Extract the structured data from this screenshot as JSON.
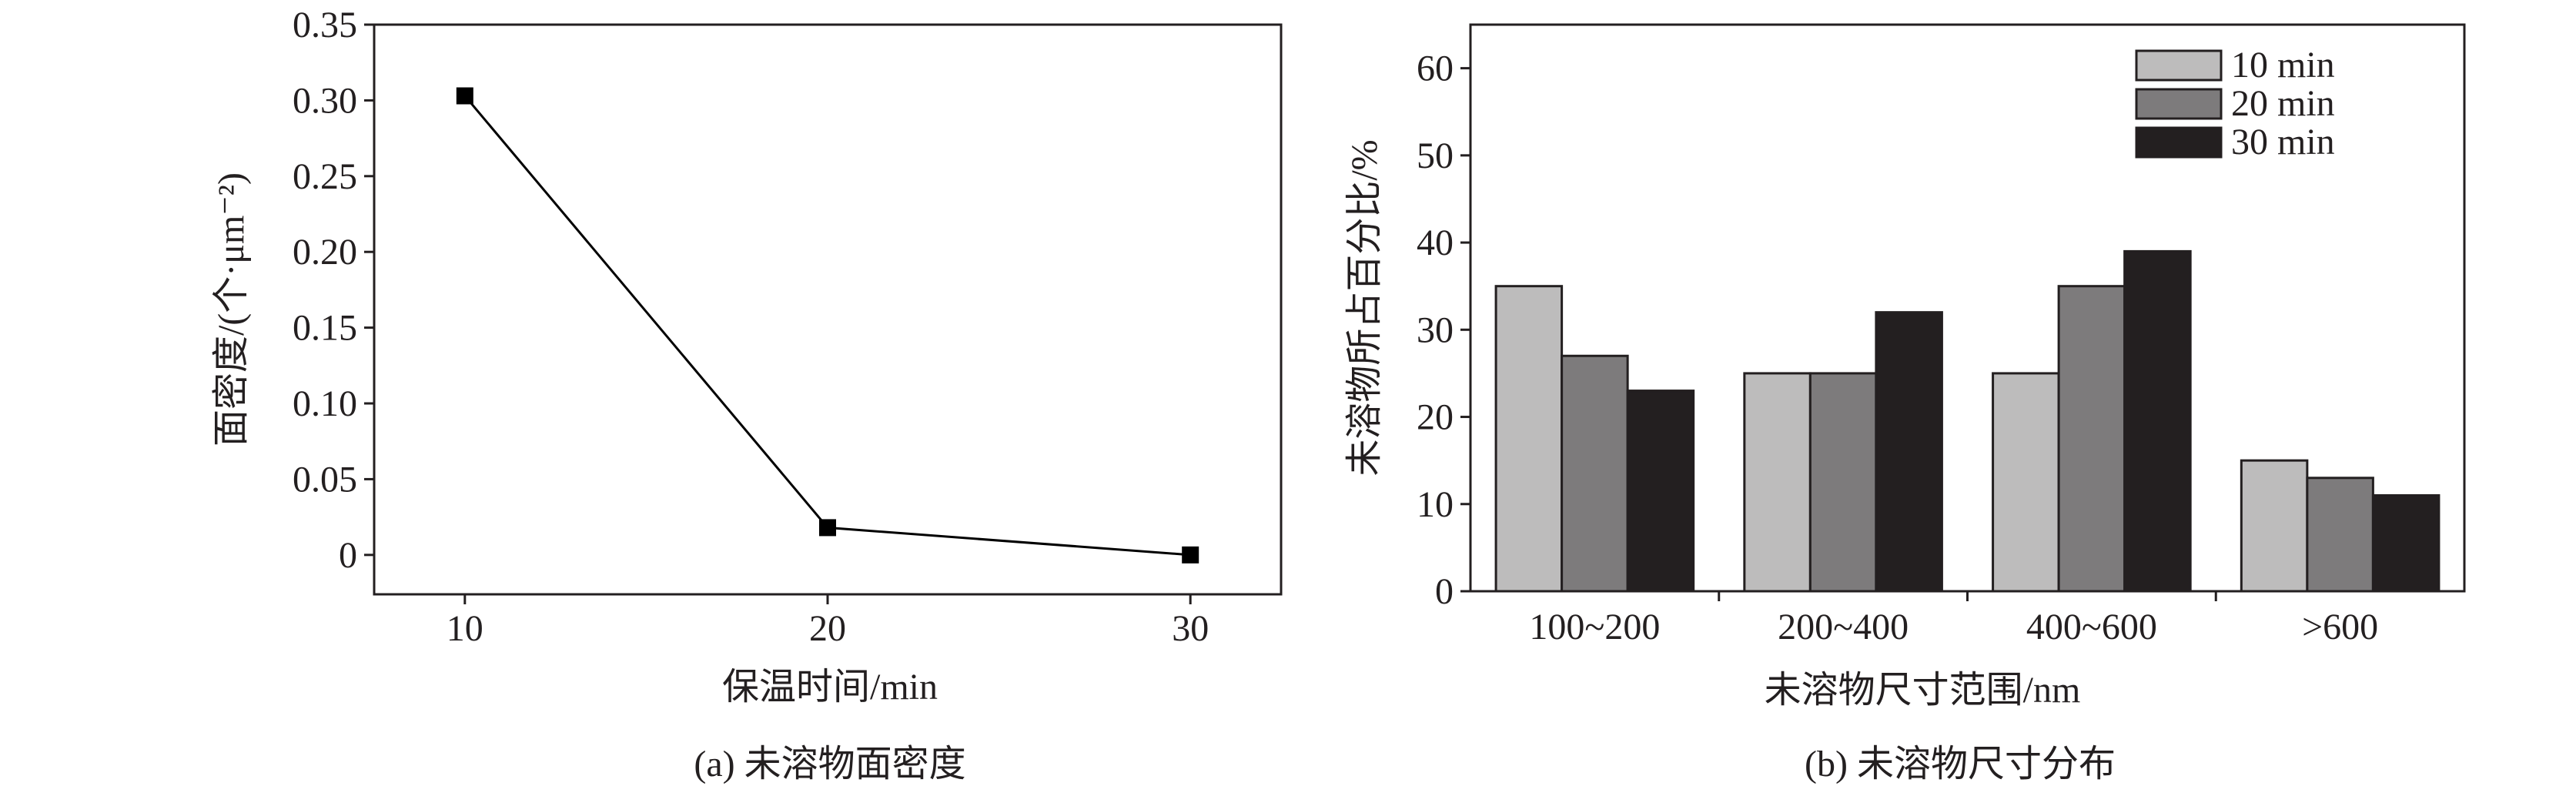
{
  "chart_data": [
    {
      "type": "line",
      "caption": "(a) 未溶物面密度",
      "xlabel": "保温时间/min",
      "ylabel": "面密度/(个·μm⁻²)",
      "x": [
        10,
        20,
        30
      ],
      "y": [
        0.303,
        0.018,
        0.0
      ],
      "xticks": [
        10,
        20,
        30
      ],
      "xtick_labels": [
        "10",
        "20",
        "30"
      ],
      "yticks": [
        0,
        0.05,
        0.1,
        0.15,
        0.2,
        0.25,
        0.3,
        0.35
      ],
      "ytick_labels": [
        "0",
        "0.05",
        "0.10",
        "0.15",
        "0.20",
        "0.25",
        "0.30",
        "0.35"
      ],
      "xlim": [
        7.5,
        32.5
      ],
      "ylim": [
        -0.026,
        0.35
      ],
      "marker": "square",
      "color": "#000000",
      "grid": false
    },
    {
      "type": "bar",
      "caption": "(b) 未溶物尺寸分布",
      "xlabel": "未溶物尺寸范围/nm",
      "ylabel": "未溶物所占百分比/%",
      "categories": [
        "100~200",
        "200~400",
        "400~600",
        ">600"
      ],
      "series": [
        {
          "name": "10 min",
          "values": [
            35,
            25,
            25,
            15
          ],
          "color": "#bdbcbc"
        },
        {
          "name": "20 min",
          "values": [
            27,
            25,
            35,
            13
          ],
          "color": "#7d7b7c"
        },
        {
          "name": "30 min",
          "values": [
            23,
            32,
            39,
            11
          ],
          "color": "#231f20"
        }
      ],
      "yticks": [
        0,
        10,
        20,
        30,
        40,
        50,
        60
      ],
      "ytick_labels": [
        "0",
        "10",
        "20",
        "30",
        "40",
        "50",
        "60"
      ],
      "ylim": [
        0,
        65
      ],
      "legend": "top-right",
      "grid": false
    }
  ]
}
